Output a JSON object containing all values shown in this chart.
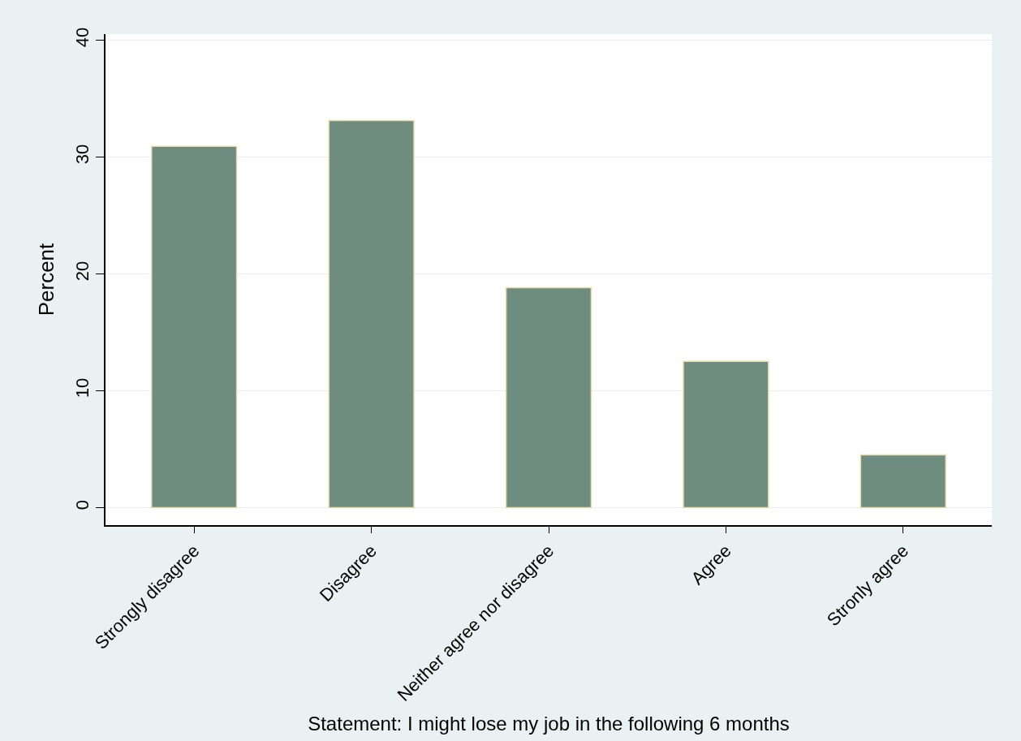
{
  "chart_data": {
    "type": "bar",
    "xlabel": "Statement: I might lose my job in the following 6 months",
    "ylabel": "Percent",
    "categories": [
      "Strongly disagree",
      "Disagree",
      "Neither agree nor disagree",
      "Agree",
      "Stronly agree"
    ],
    "values": [
      30.9,
      33.1,
      18.8,
      12.5,
      4.5
    ],
    "color": "#6e8c80",
    "ylim": [
      -1.5,
      40.5
    ],
    "yticks": [
      0,
      10,
      20,
      30,
      40
    ],
    "grid": "y"
  }
}
